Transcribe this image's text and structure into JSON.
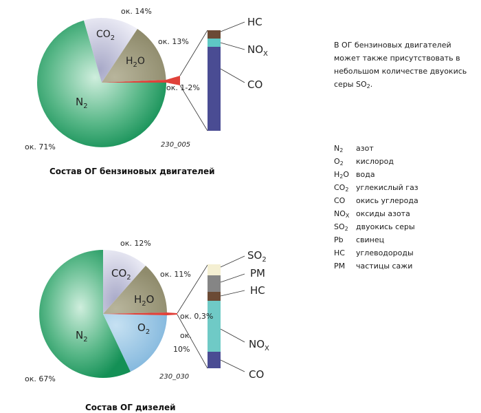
{
  "gasoline": {
    "title": "Состав ОГ бензиновых двигателей",
    "code": "230_005",
    "pct_n2": "ок. 71%",
    "pct_co2": "ок. 14%",
    "pct_h2o": "ок. 13%",
    "pct_toxic": "ок. 1-2%",
    "bar_labels": [
      "HC",
      "NO",
      "X",
      "CO"
    ]
  },
  "diesel": {
    "title": "Состав ОГ дизелей",
    "code": "230_030",
    "pct_n2": "ок. 67%",
    "pct_co2": "ок. 12%",
    "pct_h2o": "ок. 11%",
    "pct_o2_a": "ок.",
    "pct_o2_b": "10%",
    "pct_toxic": "ок. 0,3%",
    "bar_labels": [
      "SO",
      "2",
      "PM",
      "HC",
      "NO",
      "X",
      "CO"
    ]
  },
  "note": {
    "text": "В ОГ бензиновых двигателей может также присутствовать в небольшом количестве двуокись серы SO",
    "sub": "2",
    "end": "."
  },
  "legend": [
    {
      "sym": "N",
      "sub": "2",
      "desc": "азот"
    },
    {
      "sym": "O",
      "sub": "2",
      "desc": "кислород"
    },
    {
      "sym": "H",
      "sub": "2",
      "sym2": "O",
      "desc": "вода"
    },
    {
      "sym": "CO",
      "sub": "2",
      "desc": "углекислый газ"
    },
    {
      "sym": "CO",
      "sub": "",
      "desc": "окись углерода"
    },
    {
      "sym": "NO",
      "sub": "X",
      "desc": "оксиды азота"
    },
    {
      "sym": "SO",
      "sub": "2",
      "desc": "двуокись серы"
    },
    {
      "sym": "Pb",
      "sub": "",
      "desc": "свинец"
    },
    {
      "sym": "HC",
      "sub": "",
      "desc": "углеводороды"
    },
    {
      "sym": "PM",
      "sub": "",
      "desc": "частицы сажи"
    }
  ],
  "chart_data": [
    {
      "type": "pie",
      "title": "Состав ОГ бензиновых двигателей",
      "categories": [
        "N2",
        "CO2",
        "H2O",
        "HC + NOx + CO"
      ],
      "values": [
        71,
        14,
        13,
        1.5
      ],
      "colors": [
        "#2e9e6a",
        "#c8c9e0",
        "#9e9a7c",
        "#e0413a"
      ],
      "breakdown": {
        "type": "stacked-bar",
        "categories": [
          "HC",
          "NOx",
          "CO"
        ],
        "colors": [
          "#6b4a35",
          "#5ec8c4",
          "#4a4c93"
        ]
      }
    },
    {
      "type": "pie",
      "title": "Состав ОГ дизелей",
      "categories": [
        "N2",
        "CO2",
        "H2O",
        "O2",
        "SO2 + PM + HC + NOx + CO"
      ],
      "values": [
        67,
        12,
        11,
        10,
        0.3
      ],
      "colors": [
        "#2e9e6a",
        "#c8c9e0",
        "#9e9a7c",
        "#9fc9e8",
        "#e0413a"
      ],
      "breakdown": {
        "type": "stacked-bar",
        "categories": [
          "SO2",
          "PM",
          "HC",
          "NOx",
          "CO"
        ],
        "colors": [
          "#f4efd2",
          "#858585",
          "#6b4a35",
          "#6fcac6",
          "#4a4c93"
        ]
      }
    }
  ]
}
